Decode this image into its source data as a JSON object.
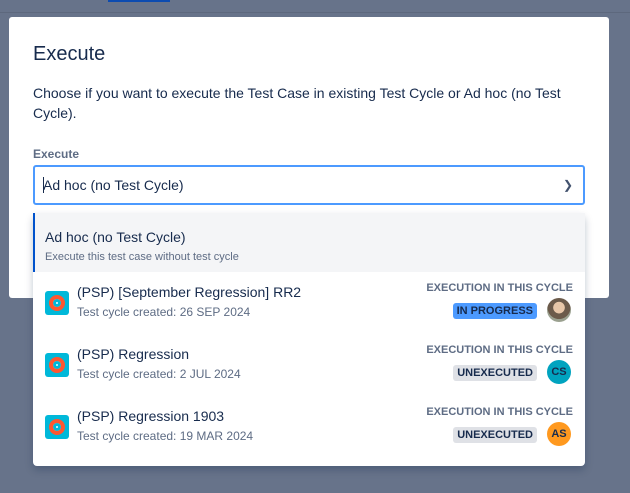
{
  "modal": {
    "title": "Execute",
    "description": "Choose if you want to execute the Test Case in existing Test Cycle or Ad hoc (no Test Cycle).",
    "field_label": "Execute",
    "selected_value": "Ad hoc (no Test Cycle)"
  },
  "menu": {
    "adhoc": {
      "title": "Ad hoc (no Test Cycle)",
      "subtitle": "Execute this test case without test cycle"
    },
    "cycles": [
      {
        "name": "(PSP) [September Regression] RR2",
        "created": "Test cycle created: 26 SEP 2024",
        "execution_label": "EXECUTION IN THIS CYCLE",
        "status": "IN PROGRESS",
        "assignee": "",
        "avatar_color": "#8a7a6a"
      },
      {
        "name": "(PSP) Regression",
        "created": "Test cycle created: 2 JUL 2024",
        "execution_label": "EXECUTION IN THIS CYCLE",
        "status": "UNEXECUTED",
        "assignee": "CS",
        "avatar_color": "#00a3bf"
      },
      {
        "name": "(PSP) Regression 1903",
        "created": "Test cycle created: 19 MAR 2024",
        "execution_label": "EXECUTION IN THIS CYCLE",
        "status": "UNEXECUTED",
        "assignee": "AS",
        "avatar_color": "#ff991f"
      }
    ]
  }
}
